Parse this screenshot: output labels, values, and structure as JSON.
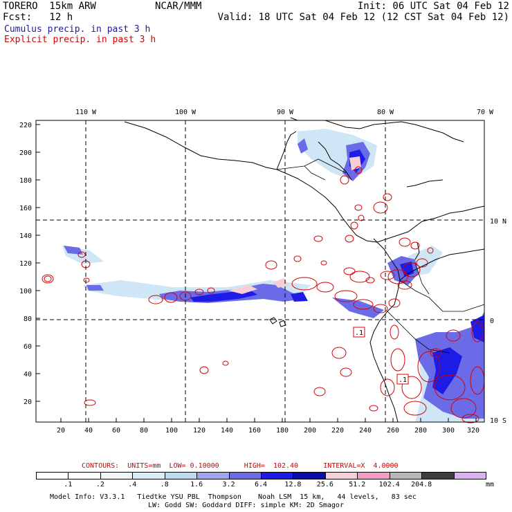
{
  "header": {
    "model": "TORERO  15km ARW",
    "org": "NCAR/MMM",
    "init": "Init: 06 UTC Sat 04 Feb 12",
    "fcst": "Fcst:   12 h",
    "valid": "Valid: 18 UTC Sat 04 Feb 12 (12 CST Sat 04 Feb 12)",
    "line1": "Cumulus precip. in past 3 h",
    "line2": "Explicit precip. in past 3 h",
    "line1_color": "#1a1aa6",
    "line2_color": "#d40000"
  },
  "map": {
    "lon_labels": [
      "110 W",
      "100 W",
      "90 W",
      "80 W",
      "70 W"
    ],
    "lat_labels": [
      "10 N",
      "0",
      "10 S"
    ],
    "y_ticks": [
      "220",
      "200",
      "180",
      "160",
      "140",
      "120",
      "100",
      "80",
      "60",
      "40",
      "20"
    ],
    "x_ticks": [
      "20",
      "40",
      "60",
      "80",
      "100",
      "120",
      "140",
      "160",
      "180",
      "200",
      "220",
      "240",
      "260",
      "280",
      "300",
      "320"
    ],
    "contour_labels": [
      ".1",
      ".1"
    ]
  },
  "contours": {
    "line": "CONTOURS:  UNITS=mm  LOW= 0.10000      HIGH=  102.40      INTERVAL=X  4.0000",
    "color": "#d40000"
  },
  "colorbar": {
    "labels": [
      ".1",
      ".2",
      ".4",
      ".8",
      "1.6",
      "3.2",
      "6.4",
      "12.8",
      "25.6",
      "51.2",
      "102.4",
      "204.8"
    ],
    "unit": "mm",
    "colors": [
      "#ffffff",
      "#ffffff",
      "#eef6fb",
      "#daeef8",
      "#bcdcf2",
      "#9fa6ee",
      "#6b6be8",
      "#1c1ce6",
      "#0b0bb2",
      "#f6cfd6",
      "#f09cc6",
      "#b8b8b8",
      "#3e3e3e",
      "#dab0f2"
    ]
  },
  "footer": {
    "line1": "Model Info: V3.3.1   Tiedtke YSU PBL  Thompson    Noah LSM  15 km,   44 levels,   83 sec",
    "line2": "LW: Godd SW: Goddard DIFF: simple KM: 2D Smagor"
  }
}
